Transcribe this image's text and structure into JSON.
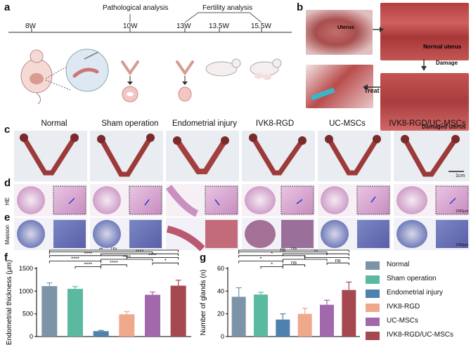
{
  "panels": {
    "a": "a",
    "b": "b",
    "c": "c",
    "d": "d",
    "e": "e",
    "f": "f",
    "g": "g"
  },
  "timeline": {
    "weeks": [
      "8W",
      "10W",
      "13W",
      "13.5W",
      "15.5W"
    ],
    "pathological_label": "Pathological analysis",
    "fertility_label": "Fertility analysis"
  },
  "panel_b": {
    "uterus": "Uterus",
    "normal_uterus": "Normal uterus",
    "damage": "Damage",
    "treat": "Treat",
    "damaged_uterus": "Damaged uterus"
  },
  "groups": [
    "Normal",
    "Sham operation",
    "Endometrial injury",
    "IVK8-RGD",
    "UC-MSCs",
    "IVK8-RGD/UC-MSCs"
  ],
  "row_labels": {
    "he": "HE",
    "masson": "Masson"
  },
  "scale_labels": {
    "cm": "1cm",
    "um_d": "1000μm",
    "um_e": "1000μm"
  },
  "colors": {
    "Normal": "#7d93a8",
    "Sham operation": "#5bb9a0",
    "Endometrial injury": "#4e81ad",
    "IVK8-RGD": "#eea98c",
    "UC-MSCs": "#a169ab",
    "IVK8-RGD/UC-MSCs": "#a6484f"
  },
  "chart_data": [
    {
      "type": "bar",
      "title": "",
      "xlabel": "",
      "ylabel": "Endometrial thickness (μm)",
      "categories": [
        "Normal",
        "Sham operation",
        "Endometrial injury",
        "IVK8-RGD",
        "UC-MSCs",
        "IVK8-RGD/UC-MSCs"
      ],
      "values": [
        1110,
        1050,
        120,
        490,
        920,
        1120
      ],
      "errors": [
        70,
        50,
        15,
        60,
        60,
        120
      ],
      "ylim": [
        0,
        1500
      ],
      "yticks": [
        0,
        500,
        1000,
        1500
      ],
      "significance": [
        {
          "pair": [
            0,
            2
          ],
          "label": "****"
        },
        {
          "pair": [
            1,
            2
          ],
          "label": "****"
        },
        {
          "pair": [
            0,
            3
          ],
          "label": "****"
        },
        {
          "pair": [
            0,
            4
          ],
          "label": "**"
        },
        {
          "pair": [
            0,
            5
          ],
          "label": "ns"
        },
        {
          "pair": [
            2,
            3
          ],
          "label": "****"
        },
        {
          "pair": [
            2,
            4
          ],
          "label": "****"
        },
        {
          "pair": [
            2,
            5
          ],
          "label": "****"
        },
        {
          "pair": [
            3,
            5
          ],
          "label": "****"
        },
        {
          "pair": [
            4,
            5
          ],
          "label": "*"
        }
      ]
    },
    {
      "type": "bar",
      "title": "",
      "xlabel": "",
      "ylabel": "Number of glands (n)",
      "categories": [
        "Normal",
        "Sham operation",
        "Endometrial injury",
        "IVK8-RGD",
        "UC-MSCs",
        "IVK8-RGD/UC-MSCs"
      ],
      "values": [
        35,
        37,
        15,
        20,
        28,
        41
      ],
      "errors": [
        8,
        2,
        5,
        5,
        4,
        7
      ],
      "ylim": [
        0,
        60
      ],
      "yticks": [
        0,
        20,
        40,
        60
      ],
      "significance": [
        {
          "pair": [
            0,
            2
          ],
          "label": "*"
        },
        {
          "pair": [
            1,
            2
          ],
          "label": "*"
        },
        {
          "pair": [
            0,
            3
          ],
          "label": "*"
        },
        {
          "pair": [
            0,
            4
          ],
          "label": "ns"
        },
        {
          "pair": [
            0,
            5
          ],
          "label": "ns"
        },
        {
          "pair": [
            2,
            3
          ],
          "label": "ns"
        },
        {
          "pair": [
            2,
            4
          ],
          "label": "*"
        },
        {
          "pair": [
            2,
            5
          ],
          "label": "**"
        },
        {
          "pair": [
            3,
            5
          ],
          "label": "*"
        },
        {
          "pair": [
            4,
            5
          ],
          "label": "ns"
        }
      ]
    }
  ]
}
